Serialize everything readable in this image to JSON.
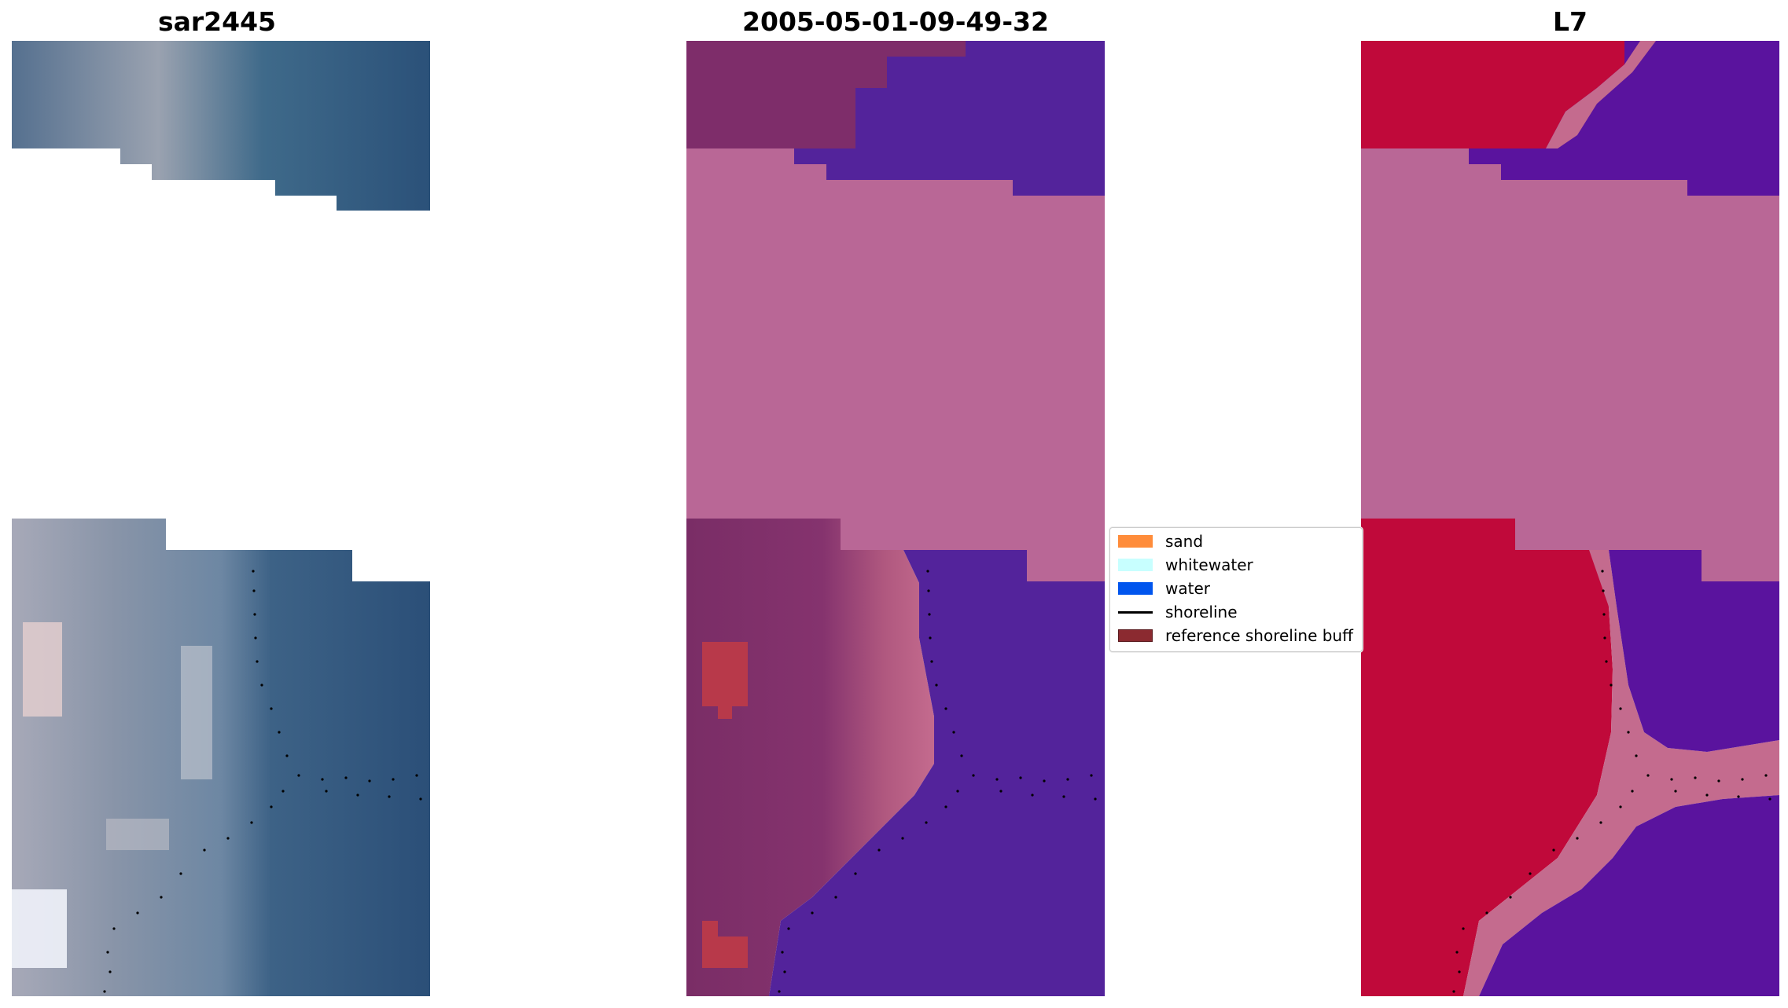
{
  "panels": [
    {
      "title": "sar2445"
    },
    {
      "title": "2005-05-01-09-49-32"
    },
    {
      "title": "L7"
    }
  ],
  "legend": {
    "items": [
      {
        "label": "sand",
        "color": "#ff8c3a",
        "kind": "patch"
      },
      {
        "label": "whitewater",
        "color": "#c8ffff",
        "kind": "patch"
      },
      {
        "label": "water",
        "color": "#0055ee",
        "kind": "patch"
      },
      {
        "label": "shoreline",
        "color": "#000000",
        "kind": "line"
      },
      {
        "label": "reference shoreline buff",
        "color": "#8b2a30",
        "kind": "patch"
      }
    ]
  },
  "colors": {
    "rgb_water": "#2b5179",
    "rgb_land_light": "#c8ccd8",
    "classified_water": "#53239b",
    "classified_land": "#7e2d6a",
    "nodata_overlay": "#b96796",
    "l7_water": "#5a139e",
    "l7_land": "#c0093a",
    "reference_buffer": "#b8394a"
  }
}
